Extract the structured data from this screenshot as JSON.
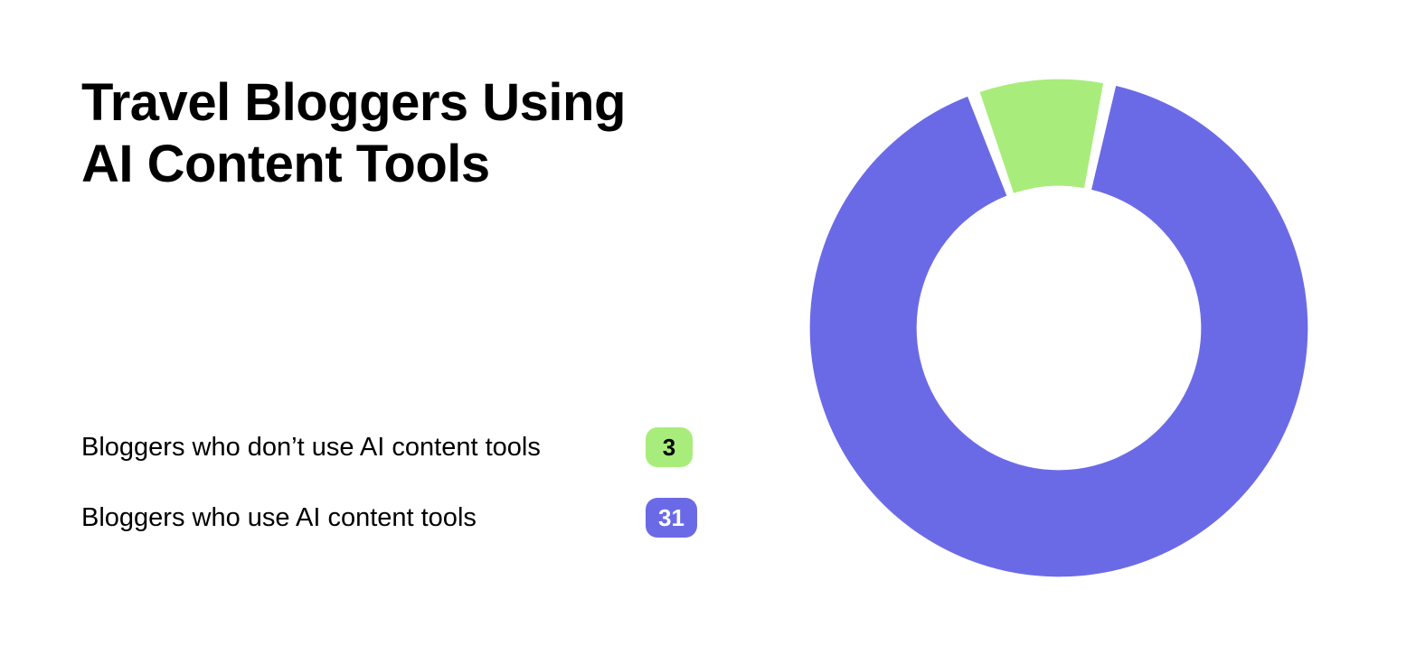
{
  "title_line1": "Travel Bloggers Using",
  "title_line2": "AI Content Tools",
  "chart": {
    "type": "donut",
    "background_color": "#ffffff",
    "outer_radius": 280,
    "inner_radius": 160,
    "gap_deg": 3,
    "start_angle_deg": -20,
    "segments": [
      {
        "id": "no_ai",
        "label": "Bloggers who don’t use AI content tools",
        "value": 3,
        "color": "#a8ed7b",
        "badge_text": "#000000"
      },
      {
        "id": "use_ai",
        "label": "Bloggers who use AI content tools",
        "value": 31,
        "color": "#6b6ae6",
        "badge_text": "#ffffff"
      }
    ]
  },
  "typography": {
    "title_fontsize": 58,
    "title_fontweight": 700,
    "legend_label_fontsize": 29,
    "legend_badge_fontsize": 26,
    "text_color": "#000000"
  }
}
